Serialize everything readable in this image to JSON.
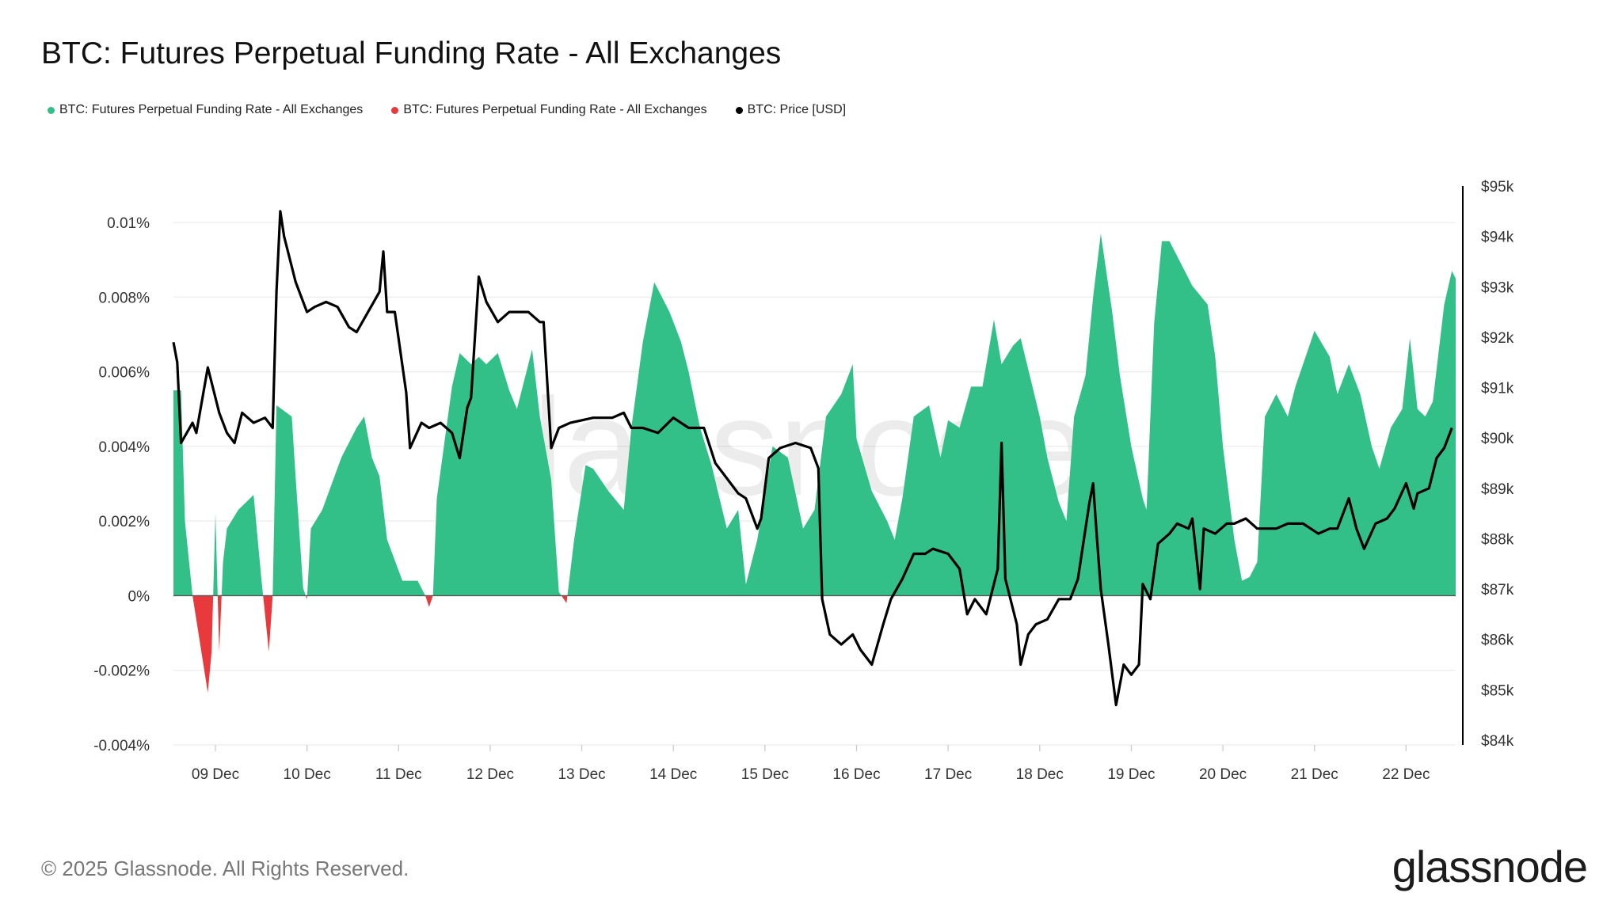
{
  "title": "BTC: Futures Perpetual Funding Rate - All Exchanges",
  "legend": [
    {
      "label": "BTC: Futures Perpetual Funding Rate - All Exchanges",
      "color": "#33bf88"
    },
    {
      "label": "BTC: Futures Perpetual Funding Rate - All Exchanges",
      "color": "#e8393d"
    },
    {
      "label": "BTC: Price [USD]",
      "color": "#000000"
    }
  ],
  "footer": {
    "copyright": "© 2025 Glassnode. All Rights Reserved.",
    "logo": "glassnode"
  },
  "watermark": "glassnode",
  "chart_data": {
    "type": "area",
    "title": "BTC: Futures Perpetual Funding Rate - All Exchanges",
    "grid": true,
    "legend_position": "top-left",
    "x_range": [
      "12-08 13:00",
      "12-22 13:00"
    ],
    "x_ticks": [
      {
        "at": "12-09 00:00",
        "label": "09 Dec"
      },
      {
        "at": "12-10 00:00",
        "label": "10 Dec"
      },
      {
        "at": "12-11 00:00",
        "label": "11 Dec"
      },
      {
        "at": "12-12 00:00",
        "label": "12 Dec"
      },
      {
        "at": "12-13 00:00",
        "label": "13 Dec"
      },
      {
        "at": "12-14 00:00",
        "label": "14 Dec"
      },
      {
        "at": "12-15 00:00",
        "label": "15 Dec"
      },
      {
        "at": "12-16 00:00",
        "label": "16 Dec"
      },
      {
        "at": "12-17 00:00",
        "label": "17 Dec"
      },
      {
        "at": "12-18 00:00",
        "label": "18 Dec"
      },
      {
        "at": "12-19 00:00",
        "label": "19 Dec"
      },
      {
        "at": "12-20 00:00",
        "label": "20 Dec"
      },
      {
        "at": "12-21 00:00",
        "label": "21 Dec"
      },
      {
        "at": "12-22 00:00",
        "label": "22 Dec"
      }
    ],
    "y_left": {
      "range": [
        -0.004,
        0.01
      ],
      "unit": "%",
      "ticks": [
        {
          "v": 0.01,
          "label": "0.01%"
        },
        {
          "v": 0.008,
          "label": "0.008%"
        },
        {
          "v": 0.006,
          "label": "0.006%"
        },
        {
          "v": 0.004,
          "label": "0.004%"
        },
        {
          "v": 0.002,
          "label": "0.002%"
        },
        {
          "v": 0,
          "label": "0%"
        },
        {
          "v": -0.002,
          "label": "-0.002%"
        },
        {
          "v": -0.004,
          "label": "-0.004%"
        }
      ]
    },
    "y_right": {
      "range": [
        84000,
        95000
      ],
      "ticks": [
        {
          "v": 95000,
          "label": "$95k"
        },
        {
          "v": 94000,
          "label": "$94k"
        },
        {
          "v": 93000,
          "label": "$93k"
        },
        {
          "v": 92000,
          "label": "$92k"
        },
        {
          "v": 91000,
          "label": "$91k"
        },
        {
          "v": 90000,
          "label": "$90k"
        },
        {
          "v": 89000,
          "label": "$89k"
        },
        {
          "v": 88000,
          "label": "$88k"
        },
        {
          "v": 87000,
          "label": "$87k"
        },
        {
          "v": 86000,
          "label": "$86k"
        },
        {
          "v": 85000,
          "label": "$85k"
        },
        {
          "v": 84000,
          "label": "$84k"
        }
      ]
    },
    "positive_color": "#33bf88",
    "negative_color": "#e8393d",
    "price_color": "#000000",
    "funding_rate": [
      [
        "12-08 13:00",
        0.0055
      ],
      [
        "12-08 15:00",
        0.0055
      ],
      [
        "12-08 16:00",
        0.002
      ],
      [
        "12-08 18:00",
        0
      ],
      [
        "12-08 22:00",
        -0.0026
      ],
      [
        "12-08 23:00",
        -0.0015
      ],
      [
        "12-09 00:00",
        0.0022
      ],
      [
        "12-09 01:00",
        -0.0015
      ],
      [
        "12-09 02:00",
        0.0009
      ],
      [
        "12-09 03:00",
        0.0018
      ],
      [
        "12-09 06:00",
        0.0023
      ],
      [
        "12-09 10:00",
        0.0027
      ],
      [
        "12-09 12:00",
        0.0005
      ],
      [
        "12-09 14:00",
        -0.0015
      ],
      [
        "12-09 15:00",
        0
      ],
      [
        "12-09 16:00",
        0.0051
      ],
      [
        "12-09 20:00",
        0.0048
      ],
      [
        "12-09 21:00",
        0.0032
      ],
      [
        "12-09 23:00",
        0.0002
      ],
      [
        "12-10 00:00",
        -0.0001
      ],
      [
        "12-10 01:00",
        0.0018
      ],
      [
        "12-10 04:00",
        0.0023
      ],
      [
        "12-10 09:00",
        0.0037
      ],
      [
        "12-10 13:00",
        0.0045
      ],
      [
        "12-10 15:00",
        0.0048
      ],
      [
        "12-10 17:00",
        0.0037
      ],
      [
        "12-10 19:00",
        0.0032
      ],
      [
        "12-10 21:00",
        0.0015
      ],
      [
        "12-11 01:00",
        0.0004
      ],
      [
        "12-11 05:00",
        0.0004
      ],
      [
        "12-11 07:00",
        0
      ],
      [
        "12-11 08:00",
        -0.0003
      ],
      [
        "12-11 09:00",
        0
      ],
      [
        "12-11 10:00",
        0.0026
      ],
      [
        "12-11 14:00",
        0.0056
      ],
      [
        "12-11 16:00",
        0.0065
      ],
      [
        "12-11 19:00",
        0.0062
      ],
      [
        "12-11 21:00",
        0.0064
      ],
      [
        "12-11 23:00",
        0.0062
      ],
      [
        "12-12 02:00",
        0.0065
      ],
      [
        "12-12 05:00",
        0.0055
      ],
      [
        "12-12 07:00",
        0.005
      ],
      [
        "12-12 11:00",
        0.0066
      ],
      [
        "12-12 13:00",
        0.0048
      ],
      [
        "12-12 16:00",
        0.0031
      ],
      [
        "12-12 18:00",
        0.0001
      ],
      [
        "12-12 20:00",
        -0.0002
      ],
      [
        "12-12 22:00",
        0.0015
      ],
      [
        "12-13 01:00",
        0.0035
      ],
      [
        "12-13 03:00",
        0.0034
      ],
      [
        "12-13 07:00",
        0.0028
      ],
      [
        "12-13 11:00",
        0.0023
      ],
      [
        "12-13 13:00",
        0.0045
      ],
      [
        "12-13 16:00",
        0.0068
      ],
      [
        "12-13 19:00",
        0.0084
      ],
      [
        "12-13 23:00",
        0.0076
      ],
      [
        "12-14 02:00",
        0.0068
      ],
      [
        "12-14 04:00",
        0.006
      ],
      [
        "12-14 07:00",
        0.0045
      ],
      [
        "12-14 10:00",
        0.0035
      ],
      [
        "12-14 14:00",
        0.0018
      ],
      [
        "12-14 17:00",
        0.0023
      ],
      [
        "12-14 19:00",
        0.0003
      ],
      [
        "12-14 22:00",
        0.0015
      ],
      [
        "12-15 02:00",
        0.004
      ],
      [
        "12-15 06:00",
        0.0037
      ],
      [
        "12-15 10:00",
        0.0018
      ],
      [
        "12-15 13:00",
        0.0023
      ],
      [
        "12-15 16:00",
        0.0048
      ],
      [
        "12-15 20:00",
        0.0054
      ],
      [
        "12-15 23:00",
        0.0062
      ],
      [
        "12-16 00:00",
        0.0042
      ],
      [
        "12-16 04:00",
        0.0028
      ],
      [
        "12-16 08:00",
        0.002
      ],
      [
        "12-16 10:00",
        0.0015
      ],
      [
        "12-16 12:00",
        0.0026
      ],
      [
        "12-16 15:00",
        0.0048
      ],
      [
        "12-16 19:00",
        0.0051
      ],
      [
        "12-16 22:00",
        0.0037
      ],
      [
        "12-17 00:00",
        0.0047
      ],
      [
        "12-17 03:00",
        0.0045
      ],
      [
        "12-17 06:00",
        0.0056
      ],
      [
        "12-17 09:00",
        0.0056
      ],
      [
        "12-17 12:00",
        0.0074
      ],
      [
        "12-17 14:00",
        0.0062
      ],
      [
        "12-17 17:00",
        0.0067
      ],
      [
        "12-17 19:00",
        0.0069
      ],
      [
        "12-18 00:00",
        0.0048
      ],
      [
        "12-18 02:00",
        0.0037
      ],
      [
        "12-18 05:00",
        0.0025
      ],
      [
        "12-18 07:00",
        0.002
      ],
      [
        "12-18 09:00",
        0.0048
      ],
      [
        "12-18 12:00",
        0.0059
      ],
      [
        "12-18 14:00",
        0.008
      ],
      [
        "12-18 16:00",
        0.0097
      ],
      [
        "12-18 19:00",
        0.0076
      ],
      [
        "12-18 21:00",
        0.0059
      ],
      [
        "12-19 00:00",
        0.004
      ],
      [
        "12-19 03:00",
        0.0026
      ],
      [
        "12-19 04:00",
        0.0023
      ],
      [
        "12-19 06:00",
        0.0073
      ],
      [
        "12-19 08:00",
        0.0095
      ],
      [
        "12-19 10:00",
        0.0095
      ],
      [
        "12-19 14:00",
        0.0087
      ],
      [
        "12-19 16:00",
        0.0083
      ],
      [
        "12-19 20:00",
        0.0078
      ],
      [
        "12-19 22:00",
        0.0064
      ],
      [
        "12-20 00:00",
        0.004
      ],
      [
        "12-20 03:00",
        0.0015
      ],
      [
        "12-20 05:00",
        0.0004
      ],
      [
        "12-20 07:00",
        0.0005
      ],
      [
        "12-20 09:00",
        0.0009
      ],
      [
        "12-20 11:00",
        0.0048
      ],
      [
        "12-20 14:00",
        0.0054
      ],
      [
        "12-20 17:00",
        0.0048
      ],
      [
        "12-20 19:00",
        0.0056
      ],
      [
        "12-20 22:00",
        0.0065
      ],
      [
        "12-21 00:00",
        0.0071
      ],
      [
        "12-21 04:00",
        0.0064
      ],
      [
        "12-21 06:00",
        0.0054
      ],
      [
        "12-21 09:00",
        0.0062
      ],
      [
        "12-21 12:00",
        0.0054
      ],
      [
        "12-21 15:00",
        0.004
      ],
      [
        "12-21 17:00",
        0.0034
      ],
      [
        "12-21 20:00",
        0.0045
      ],
      [
        "12-21 23:00",
        0.005
      ],
      [
        "12-22 01:00",
        0.0069
      ],
      [
        "12-22 03:00",
        0.005
      ],
      [
        "12-22 05:00",
        0.0048
      ],
      [
        "12-22 07:00",
        0.0052
      ],
      [
        "12-22 10:00",
        0.0078
      ],
      [
        "12-22 12:00",
        0.0087
      ],
      [
        "12-22 13:00",
        0.0085
      ]
    ],
    "price": [
      [
        "12-08 13:00",
        91900
      ],
      [
        "12-08 14:00",
        91500
      ],
      [
        "12-08 15:00",
        89900
      ],
      [
        "12-08 18:00",
        90300
      ],
      [
        "12-08 19:00",
        90100
      ],
      [
        "12-08 22:00",
        91400
      ],
      [
        "12-09 01:00",
        90500
      ],
      [
        "12-09 03:00",
        90100
      ],
      [
        "12-09 05:00",
        89900
      ],
      [
        "12-09 07:00",
        90500
      ],
      [
        "12-09 10:00",
        90300
      ],
      [
        "12-09 13:00",
        90400
      ],
      [
        "12-09 15:00",
        90200
      ],
      [
        "12-09 16:00",
        92900
      ],
      [
        "12-09 17:00",
        94500
      ],
      [
        "12-09 18:00",
        94000
      ],
      [
        "12-09 21:00",
        93100
      ],
      [
        "12-10 00:00",
        92500
      ],
      [
        "12-10 02:00",
        92600
      ],
      [
        "12-10 05:00",
        92700
      ],
      [
        "12-10 08:00",
        92600
      ],
      [
        "12-10 11:00",
        92200
      ],
      [
        "12-10 13:00",
        92100
      ],
      [
        "12-10 16:00",
        92500
      ],
      [
        "12-10 19:00",
        92900
      ],
      [
        "12-10 20:00",
        93700
      ],
      [
        "12-10 21:00",
        92500
      ],
      [
        "12-10 23:00",
        92500
      ],
      [
        "12-11 02:00",
        90900
      ],
      [
        "12-11 03:00",
        89800
      ],
      [
        "12-11 06:00",
        90300
      ],
      [
        "12-11 08:00",
        90200
      ],
      [
        "12-11 11:00",
        90300
      ],
      [
        "12-11 14:00",
        90100
      ],
      [
        "12-11 16:00",
        89600
      ],
      [
        "12-11 18:00",
        90600
      ],
      [
        "12-11 19:00",
        90800
      ],
      [
        "12-11 21:00",
        93200
      ],
      [
        "12-11 23:00",
        92700
      ],
      [
        "12-12 02:00",
        92300
      ],
      [
        "12-12 05:00",
        92500
      ],
      [
        "12-12 08:00",
        92500
      ],
      [
        "12-12 10:00",
        92500
      ],
      [
        "12-12 13:00",
        92300
      ],
      [
        "12-12 14:00",
        92300
      ],
      [
        "12-12 16:00",
        89800
      ],
      [
        "12-12 18:00",
        90200
      ],
      [
        "12-12 21:00",
        90300
      ],
      [
        "12-13 03:00",
        90400
      ],
      [
        "12-13 08:00",
        90400
      ],
      [
        "12-13 11:00",
        90500
      ],
      [
        "12-13 13:00",
        90200
      ],
      [
        "12-13 16:00",
        90200
      ],
      [
        "12-13 20:00",
        90100
      ],
      [
        "12-14 00:00",
        90400
      ],
      [
        "12-14 04:00",
        90200
      ],
      [
        "12-14 08:00",
        90200
      ],
      [
        "12-14 11:00",
        89500
      ],
      [
        "12-14 14:00",
        89200
      ],
      [
        "12-14 17:00",
        88900
      ],
      [
        "12-14 19:00",
        88800
      ],
      [
        "12-14 22:00",
        88200
      ],
      [
        "12-14 23:00",
        88400
      ],
      [
        "12-15 01:00",
        89600
      ],
      [
        "12-15 04:00",
        89800
      ],
      [
        "12-15 08:00",
        89900
      ],
      [
        "12-15 12:00",
        89800
      ],
      [
        "12-15 14:00",
        89400
      ],
      [
        "12-15 15:00",
        86800
      ],
      [
        "12-15 17:00",
        86100
      ],
      [
        "12-15 20:00",
        85900
      ],
      [
        "12-15 23:00",
        86100
      ],
      [
        "12-16 01:00",
        85800
      ],
      [
        "12-16 04:00",
        85500
      ],
      [
        "12-16 07:00",
        86300
      ],
      [
        "12-16 09:00",
        86800
      ],
      [
        "12-16 12:00",
        87200
      ],
      [
        "12-16 15:00",
        87700
      ],
      [
        "12-16 18:00",
        87700
      ],
      [
        "12-16 20:00",
        87800
      ],
      [
        "12-17 00:00",
        87700
      ],
      [
        "12-17 03:00",
        87400
      ],
      [
        "12-17 05:00",
        86500
      ],
      [
        "12-17 07:00",
        86800
      ],
      [
        "12-17 10:00",
        86500
      ],
      [
        "12-17 13:00",
        87400
      ],
      [
        "12-17 14:00",
        89900
      ],
      [
        "12-17 15:00",
        87200
      ],
      [
        "12-17 18:00",
        86300
      ],
      [
        "12-17 19:00",
        85500
      ],
      [
        "12-17 21:00",
        86100
      ],
      [
        "12-17 23:00",
        86300
      ],
      [
        "12-18 02:00",
        86400
      ],
      [
        "12-18 05:00",
        86800
      ],
      [
        "12-18 08:00",
        86800
      ],
      [
        "12-18 10:00",
        87200
      ],
      [
        "12-18 13:00",
        88700
      ],
      [
        "12-18 14:00",
        89100
      ],
      [
        "12-18 15:00",
        88000
      ],
      [
        "12-18 16:00",
        87000
      ],
      [
        "12-18 18:00",
        85900
      ],
      [
        "12-18 20:00",
        84700
      ],
      [
        "12-18 22:00",
        85500
      ],
      [
        "12-19 00:00",
        85300
      ],
      [
        "12-19 02:00",
        85500
      ],
      [
        "12-19 03:00",
        87100
      ],
      [
        "12-19 05:00",
        86800
      ],
      [
        "12-19 07:00",
        87900
      ],
      [
        "12-19 10:00",
        88100
      ],
      [
        "12-19 12:00",
        88300
      ],
      [
        "12-19 15:00",
        88200
      ],
      [
        "12-19 16:00",
        88400
      ],
      [
        "12-19 18:00",
        87000
      ],
      [
        "12-19 19:00",
        88200
      ],
      [
        "12-19 22:00",
        88100
      ],
      [
        "12-20 01:00",
        88300
      ],
      [
        "12-20 03:00",
        88300
      ],
      [
        "12-20 06:00",
        88400
      ],
      [
        "12-20 09:00",
        88200
      ],
      [
        "12-20 11:00",
        88200
      ],
      [
        "12-20 14:00",
        88200
      ],
      [
        "12-20 17:00",
        88300
      ],
      [
        "12-20 21:00",
        88300
      ],
      [
        "12-20 23:00",
        88200
      ],
      [
        "12-21 01:00",
        88100
      ],
      [
        "12-21 04:00",
        88200
      ],
      [
        "12-21 06:00",
        88200
      ],
      [
        "12-21 09:00",
        88800
      ],
      [
        "12-21 11:00",
        88200
      ],
      [
        "12-21 13:00",
        87800
      ],
      [
        "12-21 16:00",
        88300
      ],
      [
        "12-21 19:00",
        88400
      ],
      [
        "12-21 21:00",
        88600
      ],
      [
        "12-22 00:00",
        89100
      ],
      [
        "12-22 02:00",
        88600
      ],
      [
        "12-22 03:00",
        88900
      ],
      [
        "12-22 06:00",
        89000
      ],
      [
        "12-22 08:00",
        89600
      ],
      [
        "12-22 10:00",
        89800
      ],
      [
        "12-22 12:00",
        90200
      ]
    ]
  }
}
